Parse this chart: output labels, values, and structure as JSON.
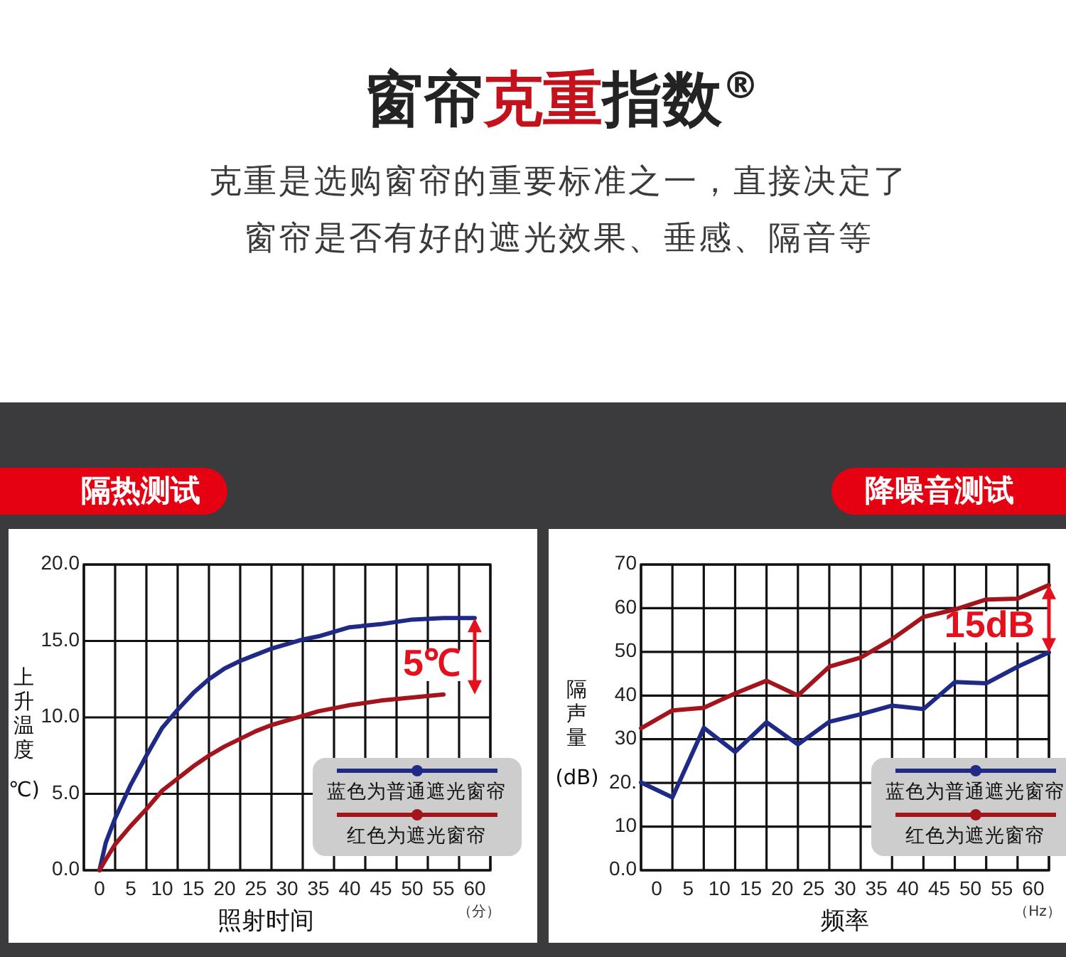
{
  "chart_data": [
    {
      "type": "other",
      "title": "窗帘克重指数$^{®}$",
      "subtitle": "克重是选购窗帘的重要标准之一，直接决定了窗帘是否有好的遮光效果、垂感、隔音等"
    },
    {
      "type": "line",
      "title": "隔热测试",
      "xlabel": "照射时间",
      "ylabel": "上升温度℃)",
      "x": [
        0,
        1,
        2.5,
        5,
        7.5,
        10,
        12.5,
        15,
        17.5,
        20,
        22.5,
        25,
        27.5,
        30,
        32.5,
        35,
        37.5,
        40,
        45,
        50,
        55,
        60
      ],
      "series": [
        {
          "name": "蓝色为普通遮光窗帘",
          "color": "#1f2a87",
          "values": [
            0,
            1.8,
            3.4,
            5.6,
            7.5,
            9.3,
            10.5,
            11.6,
            12.5,
            13.2,
            13.7,
            14.1,
            14.5,
            14.8,
            15.1,
            15.3,
            15.6,
            15.9,
            16.1,
            16.4,
            16.5,
            16.5
          ]
        },
        {
          "name": "红色为遮光窗帘",
          "color": "#a3141c",
          "values": [
            0,
            0.7,
            1.7,
            2.9,
            4.0,
            5.2,
            6.0,
            6.8,
            7.5,
            8.1,
            8.6,
            9.1,
            9.5,
            9.8,
            10.1,
            10.4,
            10.6,
            10.8,
            11.1,
            11.3,
            11.5,
            null
          ]
        }
      ],
      "xlim": [
        -2.5,
        62.5
      ],
      "xticks": [
        {
          "value": -2.5,
          "label": null
        },
        0,
        {
          "value": 2.5,
          "label": null
        },
        5,
        {
          "value": 7.5,
          "label": null
        },
        10,
        {
          "value": 12.5,
          "label": null
        },
        15,
        {
          "value": 17.5,
          "label": null
        },
        20,
        {
          "value": 22.5,
          "label": null
        },
        25,
        {
          "value": 27.5,
          "label": null
        },
        30,
        {
          "value": 32.5,
          "label": null
        },
        35,
        {
          "value": 37.5,
          "label": null
        },
        40,
        {
          "value": 42.5,
          "label": null
        },
        45,
        {
          "value": 47.5,
          "label": null
        },
        50,
        {
          "value": 52.5,
          "label": null
        },
        55,
        {
          "value": 57.5,
          "label": null
        },
        60,
        {
          "value": 62.5,
          "label": null
        }
      ],
      "ylim": [
        0,
        20
      ],
      "yticks": [
        {
          "value": 0,
          "label": "0.0"
        },
        {
          "value": 5,
          "label": "5.0"
        },
        {
          "value": 10,
          "label": "10.0"
        },
        {
          "value": 15,
          "label": "15.0"
        },
        {
          "value": 20,
          "label": "20.0"
        }
      ],
      "grid": true,
      "legend": "bottom right",
      "annotations": [
        "5℃",
        "（分）"
      ]
    },
    {
      "type": "line",
      "title": "降噪音测试",
      "xlabel": "频率",
      "ylabel": "隔声量(dB)",
      "x": [
        -2.5,
        2.5,
        7.5,
        12.5,
        17.5,
        22.5,
        27.5,
        32.5,
        37.5,
        42.5,
        47.5,
        52.5,
        57.5,
        62.5
      ],
      "series": [
        {
          "name": "蓝色为普通遮光窗帘",
          "color": "#1f2a87",
          "values": [
            20.1,
            16.7,
            32.6,
            27.1,
            33.9,
            28.8,
            34.0,
            35.7,
            37.7,
            36.9,
            43.1,
            42.8,
            46.6,
            49.9
          ]
        },
        {
          "name": "红色为遮光窗帘",
          "color": "#a3141c",
          "values": [
            32.5,
            36.6,
            37.2,
            40.5,
            43.4,
            40.0,
            46.6,
            48.7,
            52.9,
            58.0,
            59.7,
            62.0,
            62.2,
            65.3
          ]
        }
      ],
      "xlim": [
        -2.5,
        62.5
      ],
      "xticks": [
        {
          "value": -2.5,
          "label": null
        },
        0,
        {
          "value": 2.5,
          "label": null
        },
        5,
        {
          "value": 7.5,
          "label": null
        },
        10,
        {
          "value": 12.5,
          "label": null
        },
        15,
        {
          "value": 17.5,
          "label": null
        },
        20,
        {
          "value": 22.5,
          "label": null
        },
        25,
        {
          "value": 27.5,
          "label": null
        },
        30,
        {
          "value": 32.5,
          "label": null
        },
        35,
        {
          "value": 37.5,
          "label": null
        },
        40,
        {
          "value": 42.5,
          "label": null
        },
        45,
        {
          "value": 47.5,
          "label": null
        },
        50,
        {
          "value": 52.5,
          "label": null
        },
        55,
        {
          "value": 57.5,
          "label": null
        },
        60,
        {
          "value": 62.5,
          "label": null
        }
      ],
      "ylim": [
        0,
        70
      ],
      "yticks": [
        {
          "value": 0,
          "label": "0.0"
        },
        10,
        {
          "value": 20,
          "label": "20."
        },
        30,
        40,
        50,
        60,
        70
      ],
      "grid": true,
      "legend": "bottom right",
      "annotations": [
        "15dB",
        "（Hz）"
      ]
    }
  ]
}
